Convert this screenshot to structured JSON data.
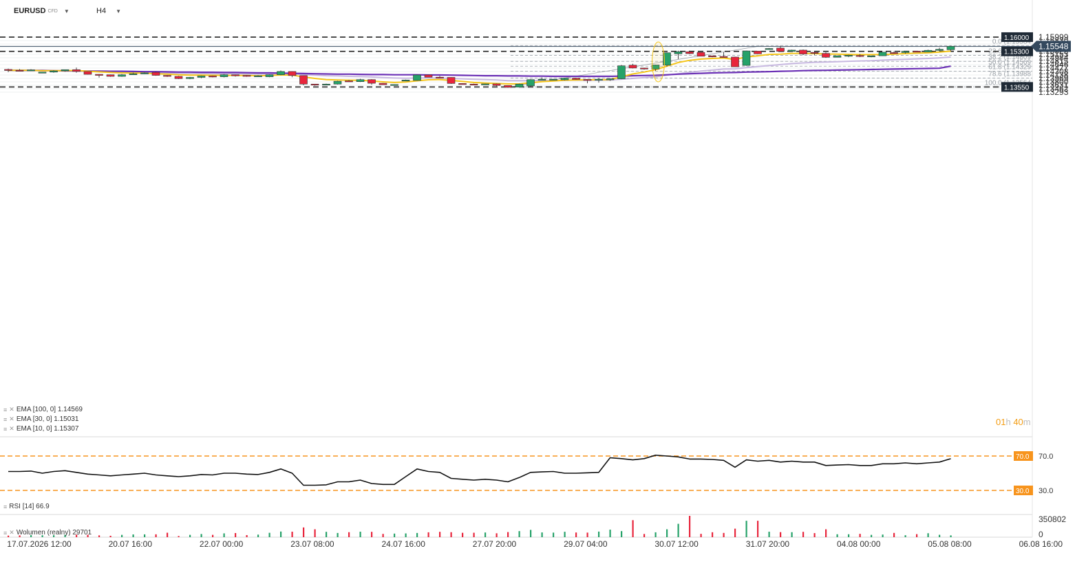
{
  "header": {
    "symbol": "EURUSD",
    "symbol_tag": "CFD",
    "timeframe": "H4"
  },
  "indicators": {
    "ema100": "EMA [100, 0] 1.14569",
    "ema30": "EMA [30, 0] 1.15031",
    "ema10": "EMA [10, 0] 1.15307",
    "rsi": "RSI [14] 66.9",
    "volume": "Wolumen (realny) 29701"
  },
  "timer": {
    "hours": "01",
    "h": "h",
    "minutes": "40",
    "m": "m"
  },
  "colors": {
    "up": "#26a269",
    "down": "#e8253c",
    "ema10": "#f5c518",
    "ema30": "#c7b8e0",
    "ema100": "#6a2fb5",
    "rsi_level": "#f7941d"
  },
  "chart_data": {
    "type": "candlestick",
    "symbol": "EURUSD",
    "timeframe": "H4",
    "price_ticks": [
      1.15999,
      1.1583,
      1.15661,
      1.15492,
      1.15322,
      1.15153,
      1.14984,
      1.14815,
      1.14646,
      1.14477,
      1.14308,
      1.14138,
      1.13969,
      1.138,
      1.13631,
      1.13462,
      1.13293
    ],
    "time_ticks": [
      "17.07.2026 12:00",
      "20.07 16:00",
      "22.07 00:00",
      "23.07 08:00",
      "24.07 16:00",
      "27.07 20:00",
      "29.07 04:00",
      "30.07 12:00",
      "31.07 20:00",
      "04.08 00:00",
      "05.08 08:00",
      "06.08 16:00"
    ],
    "ohlc": [
      [
        1.1441,
        1.1445,
        1.1428,
        1.1437
      ],
      [
        1.1437,
        1.1443,
        1.1434,
        1.1435
      ],
      [
        1.1435,
        1.1442,
        1.1434,
        1.1439
      ],
      [
        1.1427,
        1.1429,
        1.1425,
        1.1428
      ],
      [
        1.1428,
        1.1437,
        1.1425,
        1.1434
      ],
      [
        1.1434,
        1.1441,
        1.143,
        1.144
      ],
      [
        1.144,
        1.145,
        1.1425,
        1.1431
      ],
      [
        1.1431,
        1.1432,
        1.1416,
        1.1417
      ],
      [
        1.1417,
        1.1418,
        1.1401,
        1.1415
      ],
      [
        1.1415,
        1.1416,
        1.1405,
        1.1407
      ],
      [
        1.1407,
        1.1418,
        1.1405,
        1.1415
      ],
      [
        1.1415,
        1.1425,
        1.1415,
        1.142
      ],
      [
        1.142,
        1.1427,
        1.1418,
        1.1424
      ],
      [
        1.1427,
        1.143,
        1.141,
        1.1412
      ],
      [
        1.1412,
        1.1414,
        1.1404,
        1.1407
      ],
      [
        1.1407,
        1.1409,
        1.1394,
        1.1396
      ],
      [
        1.1396,
        1.1404,
        1.1393,
        1.1402
      ],
      [
        1.1402,
        1.1411,
        1.1398,
        1.1409
      ],
      [
        1.1409,
        1.1411,
        1.1402,
        1.1405
      ],
      [
        1.1405,
        1.1418,
        1.1402,
        1.1415
      ],
      [
        1.1415,
        1.1416,
        1.1406,
        1.1412
      ],
      [
        1.1412,
        1.1414,
        1.1405,
        1.1408
      ],
      [
        1.1408,
        1.1413,
        1.1404,
        1.141
      ],
      [
        1.1405,
        1.1417,
        1.1403,
        1.1415
      ],
      [
        1.1415,
        1.1436,
        1.1413,
        1.1431
      ],
      [
        1.1431,
        1.1432,
        1.1403,
        1.1411
      ],
      [
        1.1411,
        1.1412,
        1.1363,
        1.1369
      ],
      [
        1.1369,
        1.137,
        1.1361,
        1.1367
      ],
      [
        1.1367,
        1.1371,
        1.1366,
        1.1369
      ],
      [
        1.1369,
        1.1385,
        1.1367,
        1.1383
      ],
      [
        1.1385,
        1.1389,
        1.138,
        1.1381
      ],
      [
        1.1381,
        1.1395,
        1.1379,
        1.1391
      ],
      [
        1.1391,
        1.1393,
        1.1366,
        1.1373
      ],
      [
        1.1373,
        1.1374,
        1.1365,
        1.1366
      ],
      [
        1.1366,
        1.1368,
        1.1365,
        1.1367
      ],
      [
        1.1386,
        1.1391,
        1.1385,
        1.1389
      ],
      [
        1.1387,
        1.1416,
        1.1386,
        1.1414
      ],
      [
        1.1414,
        1.1415,
        1.1402,
        1.1403
      ],
      [
        1.1403,
        1.1409,
        1.1401,
        1.1402
      ],
      [
        1.1402,
        1.1403,
        1.137,
        1.1372
      ],
      [
        1.1372,
        1.1373,
        1.1369,
        1.1369
      ],
      [
        1.1369,
        1.1371,
        1.1364,
        1.1365
      ],
      [
        1.1367,
        1.1371,
        1.1366,
        1.137
      ],
      [
        1.137,
        1.1372,
        1.1359,
        1.1362
      ],
      [
        1.1362,
        1.1363,
        1.1351,
        1.1353
      ],
      [
        1.1354,
        1.1371,
        1.1353,
        1.1369
      ],
      [
        1.136,
        1.1393,
        1.1358,
        1.1391
      ],
      [
        1.1391,
        1.1402,
        1.1388,
        1.1393
      ],
      [
        1.1392,
        1.1394,
        1.1387,
        1.1393
      ],
      [
        1.139,
        1.14,
        1.1387,
        1.1398
      ],
      [
        1.1398,
        1.14,
        1.139,
        1.1392
      ],
      [
        1.1392,
        1.1393,
        1.1373,
        1.1391
      ],
      [
        1.1391,
        1.1398,
        1.1376,
        1.1393
      ],
      [
        1.1392,
        1.1397,
        1.1385,
        1.1395
      ],
      [
        1.1395,
        1.1463,
        1.1393,
        1.1459
      ],
      [
        1.1462,
        1.1469,
        1.1446,
        1.1448
      ],
      [
        1.1448,
        1.1449,
        1.144,
        1.1443
      ],
      [
        1.1443,
        1.1464,
        1.1434,
        1.1463
      ],
      [
        1.1462,
        1.1524,
        1.1455,
        1.1523
      ],
      [
        1.1518,
        1.1533,
        1.1492,
        1.1528
      ],
      [
        1.1528,
        1.1533,
        1.1516,
        1.1519
      ],
      [
        1.1525,
        1.1526,
        1.1505,
        1.1506
      ],
      [
        1.1508,
        1.1509,
        1.1501,
        1.1503
      ],
      [
        1.1505,
        1.1526,
        1.1502,
        1.1503
      ],
      [
        1.1502,
        1.1504,
        1.1453,
        1.1454
      ],
      [
        1.1461,
        1.1533,
        1.1459,
        1.1532
      ],
      [
        1.1531,
        1.1532,
        1.1516,
        1.1518
      ],
      [
        1.1542,
        1.1546,
        1.1538,
        1.1544
      ],
      [
        1.1546,
        1.1557,
        1.1529,
        1.153
      ],
      [
        1.153,
        1.1538,
        1.1528,
        1.1536
      ],
      [
        1.1536,
        1.1539,
        1.1512,
        1.1517
      ],
      [
        1.1525,
        1.1527,
        1.1512,
        1.152
      ],
      [
        1.152,
        1.1525,
        1.1498,
        1.1501
      ],
      [
        1.1501,
        1.151,
        1.15,
        1.1508
      ],
      [
        1.1508,
        1.1513,
        1.1502,
        1.1511
      ],
      [
        1.151,
        1.1517,
        1.1502,
        1.1505
      ],
      [
        1.1505,
        1.1509,
        1.1501,
        1.1508
      ],
      [
        1.1508,
        1.1527,
        1.1507,
        1.1526
      ],
      [
        1.1524,
        1.153,
        1.1518,
        1.1523
      ],
      [
        1.1524,
        1.1532,
        1.1519,
        1.153
      ],
      [
        1.1531,
        1.1532,
        1.1527,
        1.1528
      ],
      [
        1.1527,
        1.1538,
        1.1526,
        1.1535
      ],
      [
        1.1535,
        1.1548,
        1.153,
        1.154
      ],
      [
        1.1538,
        1.1557,
        1.1533,
        1.1555
      ]
    ],
    "ema10": [
      1.1437,
      1.1437,
      1.1437,
      1.1435,
      1.1435,
      1.1435,
      1.1436,
      1.1432,
      1.1429,
      1.1426,
      1.1424,
      1.1423,
      1.1423,
      1.142,
      1.1418,
      1.1415,
      1.1413,
      1.1413,
      1.1412,
      1.1412,
      1.1411,
      1.1411,
      1.141,
      1.1411,
      1.1414,
      1.1413,
      1.1404,
      1.1397,
      1.1391,
      1.1389,
      1.1388,
      1.1388,
      1.1384,
      1.138,
      1.1377,
      1.1379,
      1.1385,
      1.139,
      1.1391,
      1.1387,
      1.1382,
      1.1377,
      1.1374,
      1.1372,
      1.137,
      1.137,
      1.1376,
      1.1381,
      1.1384,
      1.1388,
      1.1389,
      1.139,
      1.139,
      1.1391,
      1.1405,
      1.1419,
      1.1428,
      1.144,
      1.1457,
      1.1475,
      1.1486,
      1.1492,
      1.1495,
      1.1497,
      1.149,
      1.1503,
      1.1508,
      1.1515,
      1.1516,
      1.152,
      1.152,
      1.1519,
      1.1517,
      1.1516,
      1.1515,
      1.1514,
      1.1514,
      1.1515,
      1.1516,
      1.1519,
      1.1521,
      1.1523,
      1.1526,
      1.1531
    ],
    "ema30": [
      1.1436,
      1.1436,
      1.1436,
      1.1435,
      1.1435,
      1.1434,
      1.1434,
      1.1432,
      1.1431,
      1.1429,
      1.1428,
      1.1427,
      1.1427,
      1.1426,
      1.1424,
      1.1422,
      1.1421,
      1.1421,
      1.142,
      1.142,
      1.142,
      1.1419,
      1.1419,
      1.1419,
      1.142,
      1.1419,
      1.1416,
      1.1413,
      1.141,
      1.1409,
      1.1407,
      1.1406,
      1.1404,
      1.1401,
      1.1399,
      1.1398,
      1.1399,
      1.1399,
      1.1399,
      1.1397,
      1.1395,
      1.1393,
      1.1391,
      1.1389,
      1.1386,
      1.1386,
      1.1386,
      1.1387,
      1.1387,
      1.1388,
      1.1388,
      1.1388,
      1.1388,
      1.1389,
      1.1393,
      1.1397,
      1.1401,
      1.1405,
      1.1413,
      1.142,
      1.1427,
      1.1433,
      1.1438,
      1.1443,
      1.1444,
      1.145,
      1.1455,
      1.146,
      1.1465,
      1.147,
      1.1473,
      1.1476,
      1.1477,
      1.1479,
      1.1481,
      1.1483,
      1.1484,
      1.1487,
      1.1489,
      1.1491,
      1.1493,
      1.1495,
      1.1498,
      1.1502
    ],
    "ema100": [
      1.1437,
      1.1437,
      1.1436,
      1.1436,
      1.1435,
      1.1434,
      1.1434,
      1.1433,
      1.1433,
      1.1432,
      1.1432,
      1.1431,
      1.143,
      1.143,
      1.1429,
      1.1428,
      1.1428,
      1.1427,
      1.1427,
      1.1426,
      1.1426,
      1.1425,
      1.1424,
      1.1424,
      1.1423,
      1.1422,
      1.1421,
      1.142,
      1.1419,
      1.1418,
      1.1418,
      1.1417,
      1.1416,
      1.1416,
      1.1415,
      1.1415,
      1.1415,
      1.1414,
      1.1414,
      1.1413,
      1.1412,
      1.1411,
      1.141,
      1.141,
      1.1409,
      1.1409,
      1.1408,
      1.1408,
      1.1407,
      1.1407,
      1.1407,
      1.1407,
      1.1407,
      1.1407,
      1.1408,
      1.141,
      1.1411,
      1.1412,
      1.1415,
      1.1418,
      1.142,
      1.1422,
      1.1424,
      1.1425,
      1.1426,
      1.1428,
      1.1429,
      1.143,
      1.1432,
      1.1433,
      1.1435,
      1.1436,
      1.1437,
      1.1438,
      1.1439,
      1.144,
      1.1441,
      1.1442,
      1.1443,
      1.1444,
      1.1445,
      1.1446,
      1.1447,
      1.1457
    ],
    "rsi": [
      52,
      52,
      52.5,
      50,
      52,
      53,
      51,
      49,
      48,
      47,
      48,
      49,
      50,
      48,
      47,
      46,
      47,
      48.5,
      48,
      50,
      50,
      49,
      48.5,
      51,
      55,
      50,
      36,
      36,
      36.5,
      40,
      40,
      42,
      38,
      37,
      37,
      46,
      55,
      52,
      51,
      44,
      43,
      42,
      43,
      42,
      40,
      45,
      51,
      51.5,
      52,
      50,
      50,
      50.5,
      51,
      68,
      67,
      65.5,
      67,
      71,
      70,
      69,
      66.5,
      66.5,
      66,
      65,
      57,
      65.5,
      64,
      65,
      63,
      64,
      63,
      63,
      59,
      59.5,
      60,
      59,
      59,
      61,
      61,
      62,
      61,
      62,
      63,
      66.9
    ],
    "rsi_levels": [
      70.0,
      30.0
    ],
    "volume": [
      26000,
      30000,
      35000,
      32000,
      33000,
      39000,
      40000,
      39000,
      30000,
      23000,
      38000,
      45000,
      46000,
      47000,
      73000,
      19000,
      38000,
      52000,
      38000,
      63000,
      68000,
      34000,
      42000,
      72000,
      93000,
      90000,
      160000,
      130000,
      88000,
      69000,
      82000,
      90000,
      88000,
      54000,
      59000,
      62000,
      69000,
      80000,
      88000,
      82000,
      72000,
      73000,
      77000,
      64000,
      84000,
      100000,
      120000,
      78000,
      75000,
      89000,
      77000,
      75000,
      92000,
      124000,
      100000,
      280000,
      53000,
      80000,
      130000,
      220000,
      350802,
      55000,
      81000,
      70000,
      140000,
      270000,
      270000,
      90000,
      83000,
      82000,
      88000,
      67000,
      130000,
      48000,
      48000,
      55000,
      38000,
      43000,
      70000,
      32000,
      50000,
      65000,
      39000,
      29701
    ],
    "volume_ticks": [
      350802,
      0
    ],
    "price_tags": {
      "line_1_1600": 1.16,
      "line_1_1530": 1.153,
      "line_1_1355": 1.1355,
      "current": 1.15548
    },
    "fibonacci": [
      {
        "label": "0.0 (1.15584",
        "price": 1.15584
      },
      {
        "label": "23.6 (1.15105",
        "price": 1.15105
      },
      {
        "label": "38.2 (1.14809",
        "price": 1.14809
      },
      {
        "label": "50.0 (1.14569",
        "price": 1.14569
      },
      {
        "label": "61.8 (1.14329",
        "price": 1.14329
      },
      {
        "label": "78.6 (1.13988",
        "price": 1.13988
      },
      {
        "label": "100.0 (1.13554",
        "price": 1.13554
      }
    ]
  }
}
